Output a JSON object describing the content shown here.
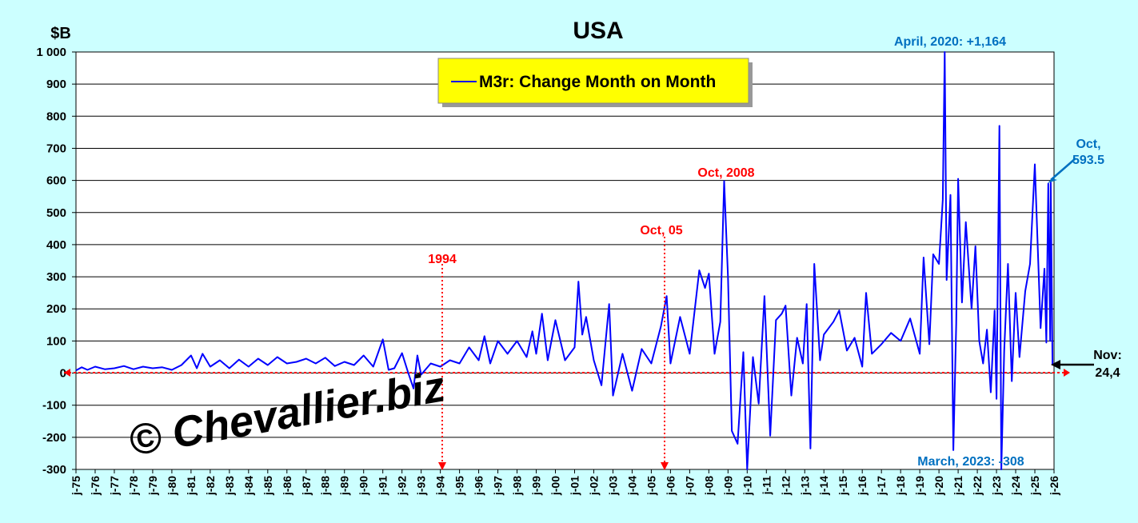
{
  "chart_data": {
    "type": "line",
    "title": "USA",
    "ylabel": "$B",
    "legend": {
      "label": "M3r: Change Month on Month",
      "position": "top-center",
      "background": "#ffff00"
    },
    "ylim": [
      -300,
      1000
    ],
    "yticks": [
      -300,
      -200,
      -100,
      0,
      100,
      200,
      300,
      400,
      500,
      600,
      700,
      800,
      900,
      1000
    ],
    "ytick_labels": [
      "-300",
      "-200",
      "-100",
      "0",
      "100",
      "200",
      "300",
      "400",
      "500",
      "600",
      "700",
      "800",
      "900",
      "1 000"
    ],
    "xlim": [
      1975.0,
      2026.0
    ],
    "xtick_labels": [
      "j-75",
      "j-76",
      "j-77",
      "j-78",
      "j-79",
      "j-80",
      "j-81",
      "j-82",
      "j-83",
      "j-84",
      "j-85",
      "j-86",
      "j-87",
      "j-88",
      "j-89",
      "j-90",
      "j-91",
      "j-92",
      "j-93",
      "j-94",
      "j-95",
      "j-96",
      "j-97",
      "j-98",
      "j-99",
      "j-00",
      "j-01",
      "j-02",
      "j-03",
      "j-04",
      "j-05",
      "j-06",
      "j-07",
      "j-08",
      "j-09",
      "j-10",
      "j-11",
      "j-12",
      "j-13",
      "j-14",
      "j-15",
      "j-16",
      "j-17",
      "j-18",
      "j-19",
      "j-20",
      "j-21",
      "j-22",
      "j-23",
      "j-24",
      "j-25",
      "j-26"
    ],
    "grid": true,
    "series": [
      {
        "name": "M3r: Change Month on Month",
        "color": "#0000ff",
        "points": [
          [
            1975.0,
            8
          ],
          [
            1975.3,
            18
          ],
          [
            1975.6,
            10
          ],
          [
            1976.0,
            20
          ],
          [
            1976.5,
            12
          ],
          [
            1977.0,
            15
          ],
          [
            1977.5,
            22
          ],
          [
            1978.0,
            12
          ],
          [
            1978.5,
            20
          ],
          [
            1979.0,
            15
          ],
          [
            1979.5,
            18
          ],
          [
            1980.0,
            10
          ],
          [
            1980.5,
            25
          ],
          [
            1981.0,
            55
          ],
          [
            1981.3,
            15
          ],
          [
            1981.6,
            60
          ],
          [
            1982.0,
            20
          ],
          [
            1982.5,
            40
          ],
          [
            1983.0,
            15
          ],
          [
            1983.5,
            42
          ],
          [
            1984.0,
            20
          ],
          [
            1984.5,
            45
          ],
          [
            1985.0,
            25
          ],
          [
            1985.5,
            50
          ],
          [
            1986.0,
            30
          ],
          [
            1986.5,
            35
          ],
          [
            1987.0,
            45
          ],
          [
            1987.5,
            30
          ],
          [
            1988.0,
            48
          ],
          [
            1988.5,
            22
          ],
          [
            1989.0,
            35
          ],
          [
            1989.5,
            25
          ],
          [
            1990.0,
            55
          ],
          [
            1990.5,
            20
          ],
          [
            1991.0,
            105
          ],
          [
            1991.3,
            10
          ],
          [
            1991.6,
            15
          ],
          [
            1992.0,
            62
          ],
          [
            1992.3,
            5
          ],
          [
            1992.6,
            -48
          ],
          [
            1992.8,
            55
          ],
          [
            1993.0,
            -5
          ],
          [
            1993.5,
            30
          ],
          [
            1994.0,
            20
          ],
          [
            1994.5,
            40
          ],
          [
            1995.0,
            30
          ],
          [
            1995.5,
            80
          ],
          [
            1996.0,
            40
          ],
          [
            1996.3,
            115
          ],
          [
            1996.6,
            30
          ],
          [
            1997.0,
            100
          ],
          [
            1997.5,
            60
          ],
          [
            1998.0,
            100
          ],
          [
            1998.5,
            50
          ],
          [
            1998.8,
            130
          ],
          [
            1999.0,
            60
          ],
          [
            1999.3,
            185
          ],
          [
            1999.6,
            40
          ],
          [
            2000.0,
            165
          ],
          [
            2000.5,
            40
          ],
          [
            2001.0,
            80
          ],
          [
            2001.2,
            285
          ],
          [
            2001.4,
            120
          ],
          [
            2001.6,
            175
          ],
          [
            2002.0,
            40
          ],
          [
            2002.4,
            -38
          ],
          [
            2002.8,
            215
          ],
          [
            2003.0,
            -70
          ],
          [
            2003.5,
            60
          ],
          [
            2004.0,
            -55
          ],
          [
            2004.5,
            75
          ],
          [
            2005.0,
            30
          ],
          [
            2005.5,
            145
          ],
          [
            2005.8,
            240
          ],
          [
            2006.0,
            30
          ],
          [
            2006.5,
            175
          ],
          [
            2007.0,
            60
          ],
          [
            2007.5,
            320
          ],
          [
            2007.8,
            265
          ],
          [
            2008.0,
            310
          ],
          [
            2008.3,
            60
          ],
          [
            2008.6,
            160
          ],
          [
            2008.8,
            598
          ],
          [
            2009.0,
            300
          ],
          [
            2009.2,
            -180
          ],
          [
            2009.5,
            -220
          ],
          [
            2009.8,
            65
          ],
          [
            2010.0,
            -300
          ],
          [
            2010.3,
            50
          ],
          [
            2010.6,
            -95
          ],
          [
            2010.9,
            240
          ],
          [
            2011.2,
            -195
          ],
          [
            2011.5,
            165
          ],
          [
            2011.8,
            185
          ],
          [
            2012.0,
            210
          ],
          [
            2012.3,
            -70
          ],
          [
            2012.6,
            110
          ],
          [
            2012.9,
            30
          ],
          [
            2013.1,
            215
          ],
          [
            2013.3,
            -235
          ],
          [
            2013.5,
            340
          ],
          [
            2013.8,
            40
          ],
          [
            2014.0,
            120
          ],
          [
            2014.5,
            160
          ],
          [
            2014.8,
            195
          ],
          [
            2015.2,
            70
          ],
          [
            2015.6,
            110
          ],
          [
            2016.0,
            20
          ],
          [
            2016.2,
            250
          ],
          [
            2016.5,
            60
          ],
          [
            2017.0,
            90
          ],
          [
            2017.5,
            125
          ],
          [
            2018.0,
            100
          ],
          [
            2018.5,
            170
          ],
          [
            2019.0,
            60
          ],
          [
            2019.2,
            360
          ],
          [
            2019.5,
            90
          ],
          [
            2019.7,
            370
          ],
          [
            2020.0,
            340
          ],
          [
            2020.2,
            540
          ],
          [
            2020.3,
            1164
          ],
          [
            2020.4,
            290
          ],
          [
            2020.6,
            555
          ],
          [
            2020.75,
            -240
          ],
          [
            2020.9,
            155
          ],
          [
            2021.0,
            605
          ],
          [
            2021.2,
            220
          ],
          [
            2021.4,
            470
          ],
          [
            2021.7,
            200
          ],
          [
            2021.9,
            395
          ],
          [
            2022.1,
            100
          ],
          [
            2022.3,
            30
          ],
          [
            2022.5,
            135
          ],
          [
            2022.7,
            -60
          ],
          [
            2022.9,
            195
          ],
          [
            2023.0,
            -80
          ],
          [
            2023.15,
            770
          ],
          [
            2023.25,
            -308
          ],
          [
            2023.4,
            70
          ],
          [
            2023.6,
            340
          ],
          [
            2023.8,
            -25
          ],
          [
            2024.0,
            250
          ],
          [
            2024.2,
            50
          ],
          [
            2024.5,
            255
          ],
          [
            2024.75,
            340
          ],
          [
            2025.0,
            650
          ],
          [
            2025.3,
            140
          ],
          [
            2025.5,
            325
          ],
          [
            2025.6,
            95
          ],
          [
            2025.7,
            590
          ],
          [
            2025.8,
            100
          ],
          [
            2025.83,
            593.5
          ],
          [
            2025.92,
            24.4
          ]
        ]
      }
    ],
    "annotations": [
      {
        "text": "April, 2020: +1,164",
        "color": "#0070c0"
      },
      {
        "text": "March, 2023: -308",
        "color": "#0070c0"
      },
      {
        "text": "Oct, 2008",
        "color": "#ff0000"
      },
      {
        "text": "Oct, 05",
        "color": "#ff0000"
      },
      {
        "text": "1994",
        "color": "#ff0000"
      },
      {
        "text_lines": [
          "Oct,",
          "593.5"
        ],
        "color": "#0070c0"
      },
      {
        "text_lines": [
          "Nov:",
          "24,4"
        ],
        "color": "#000000"
      }
    ],
    "watermark": "© Chevallier.biz"
  }
}
